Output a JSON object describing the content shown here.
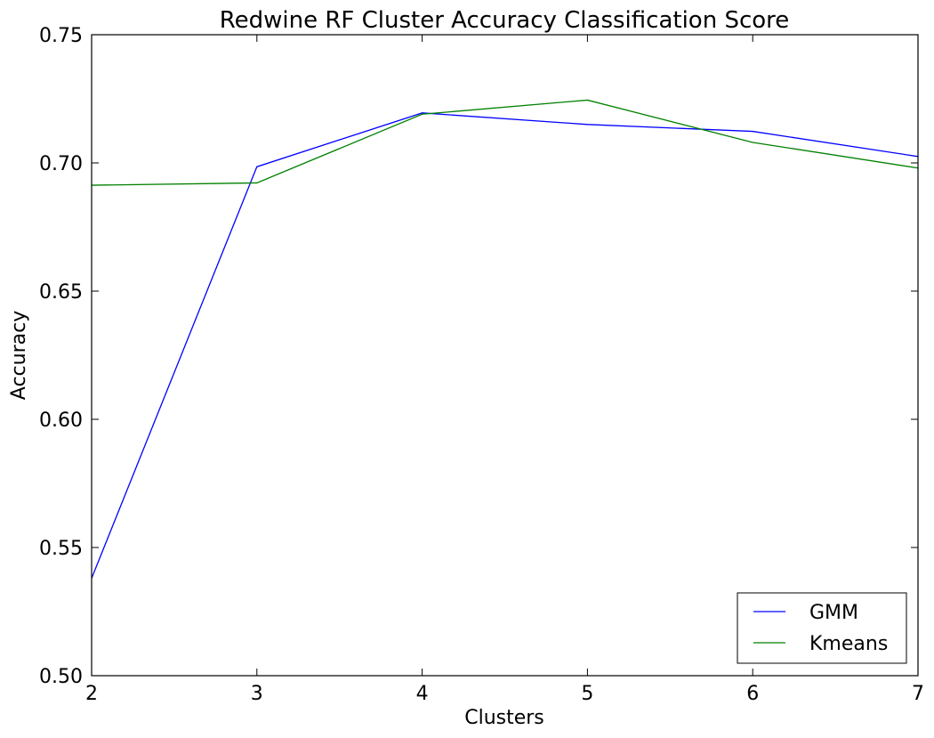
{
  "chart_data": {
    "type": "line",
    "title": "Redwine RF Cluster Accuracy Classification Score",
    "xlabel": "Clusters",
    "ylabel": "Accuracy",
    "x": [
      2,
      3,
      4,
      5,
      6,
      7
    ],
    "xlim": [
      2,
      7
    ],
    "ylim": [
      0.5,
      0.75
    ],
    "x_ticks": [
      "2",
      "3",
      "4",
      "5",
      "6",
      "7"
    ],
    "y_ticks": [
      "0.50",
      "0.55",
      "0.60",
      "0.65",
      "0.70",
      "0.75"
    ],
    "series": [
      {
        "name": "GMM",
        "color": "#0000ff",
        "values": [
          0.538,
          0.6985,
          0.7195,
          0.715,
          0.7123,
          0.7025
        ]
      },
      {
        "name": "Kmeans",
        "color": "#008000",
        "values": [
          0.6913,
          0.6922,
          0.719,
          0.7245,
          0.708,
          0.698
        ]
      }
    ],
    "grid": false,
    "legend_position": "bottom-right"
  }
}
